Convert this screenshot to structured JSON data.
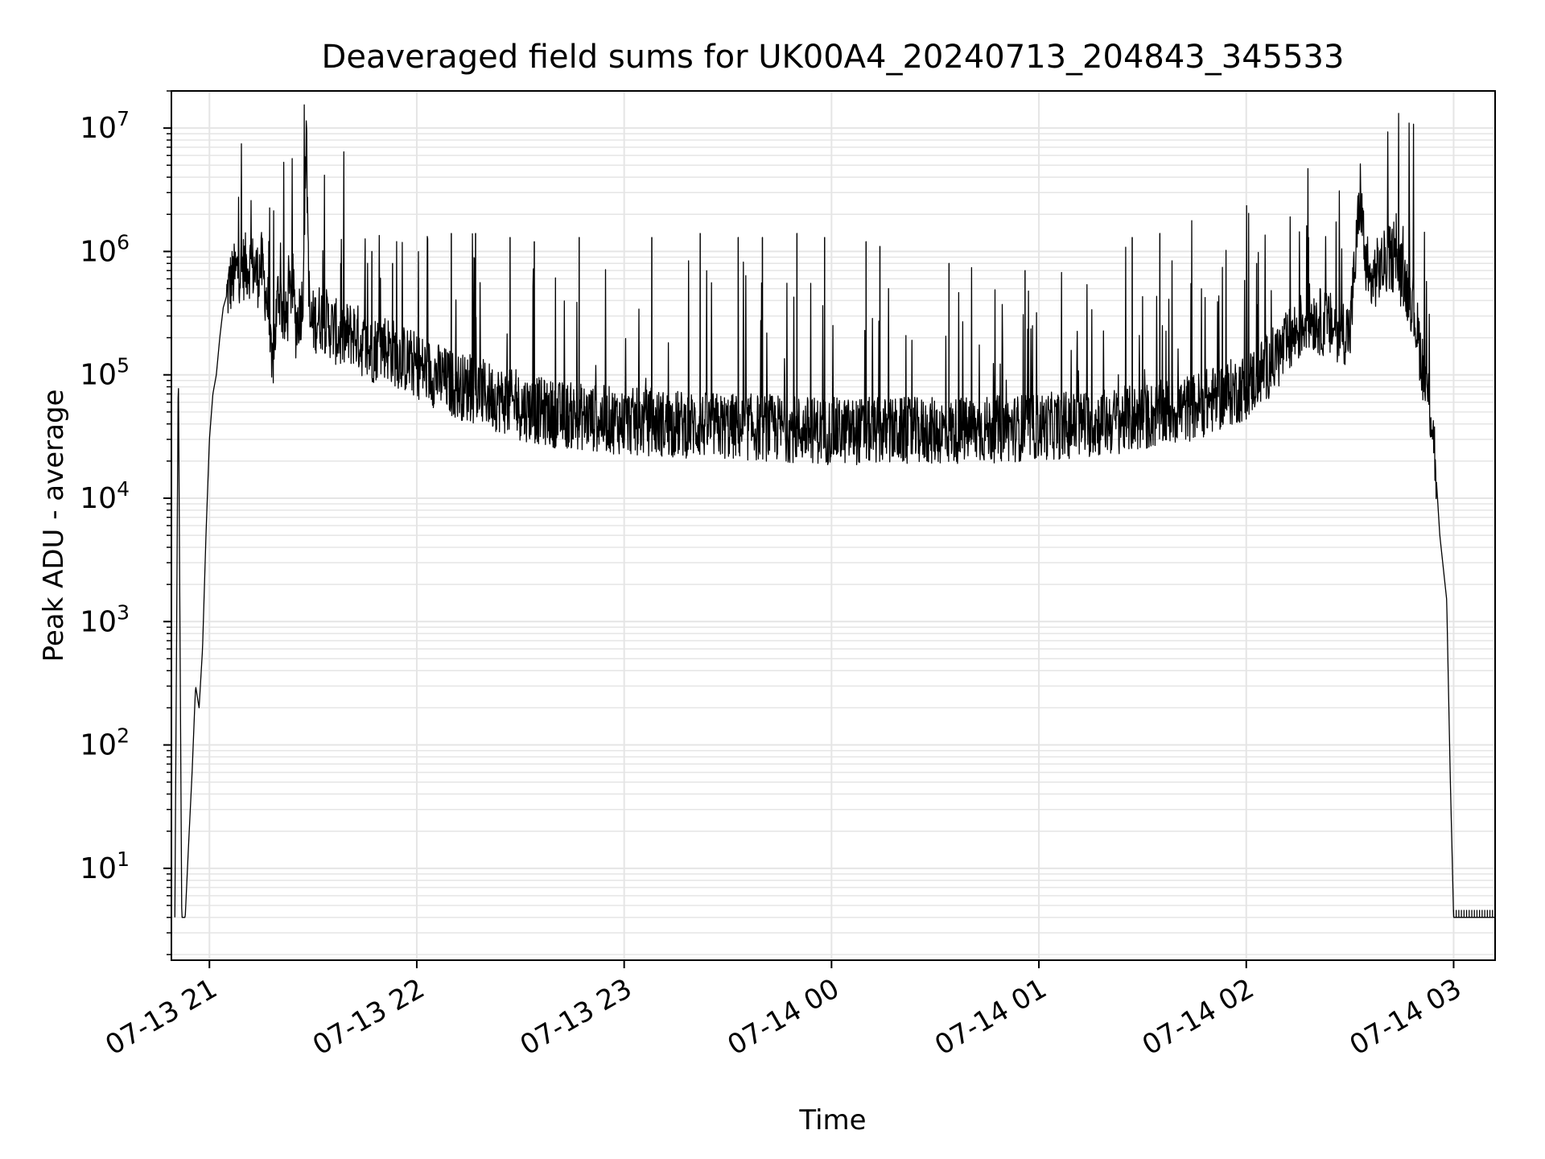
{
  "chart_data": {
    "type": "line",
    "title": "Deaveraged field sums for UK00A4_20240713_204843_345533",
    "xlabel": "Time",
    "ylabel": "Peak ADU - average",
    "yscale": "log",
    "ylim": [
      1.8,
      20000000
    ],
    "xlim": [
      "2024-07-13 20:49",
      "2024-07-14 03:12"
    ],
    "grid": true,
    "legend": "none",
    "line_color": "#000000",
    "grid_color": "#e5e5e5",
    "xticks": [
      {
        "t": "2024-07-13 21:00",
        "label": "07-13 21"
      },
      {
        "t": "2024-07-13 22:00",
        "label": "07-13 22"
      },
      {
        "t": "2024-07-13 23:00",
        "label": "07-13 23"
      },
      {
        "t": "2024-07-14 00:00",
        "label": "07-14 00"
      },
      {
        "t": "2024-07-14 01:00",
        "label": "07-14 01"
      },
      {
        "t": "2024-07-14 02:00",
        "label": "07-14 02"
      },
      {
        "t": "2024-07-14 03:00",
        "label": "07-14 03"
      }
    ],
    "yticks": [
      {
        "value": 10,
        "base": "10",
        "exp": "1"
      },
      {
        "value": 100,
        "base": "10",
        "exp": "2"
      },
      {
        "value": 1000,
        "base": "10",
        "exp": "3"
      },
      {
        "value": 10000,
        "base": "10",
        "exp": "4"
      },
      {
        "value": 100000,
        "base": "10",
        "exp": "5"
      },
      {
        "value": 1000000,
        "base": "10",
        "exp": "6"
      },
      {
        "value": 10000000,
        "base": "10",
        "exp": "7"
      }
    ],
    "series": [
      {
        "points": [
          [
            "2024-07-13 20:50",
            4
          ],
          [
            "2024-07-13 20:51",
            130000
          ],
          [
            "2024-07-13 20:52",
            4
          ],
          [
            "2024-07-13 20:53",
            4
          ],
          [
            "2024-07-13 20:54",
            16
          ],
          [
            "2024-07-13 20:55",
            60
          ],
          [
            "2024-07-13 20:56",
            300
          ],
          [
            "2024-07-13 20:57",
            200
          ],
          [
            "2024-07-13 20:58",
            600
          ],
          [
            "2024-07-13 20:59",
            5000
          ],
          [
            "2024-07-13 21:00",
            30000
          ],
          [
            "2024-07-13 21:01",
            70000
          ],
          [
            "2024-07-13 21:02",
            100000
          ],
          [
            "2024-07-13 21:03",
            200000
          ],
          [
            "2024-07-13 21:04",
            350000
          ],
          [
            "2024-07-13 21:06",
            550000
          ],
          [
            "2024-07-13 21:08",
            700000
          ],
          [
            "2024-07-13 21:10",
            750000
          ],
          [
            "2024-07-13 21:12",
            780000
          ],
          [
            "2024-07-13 21:14",
            650000
          ],
          [
            "2024-07-13 21:15",
            800000
          ],
          [
            "2024-07-13 21:17",
            350000
          ],
          [
            "2024-07-13 21:18",
            100000
          ],
          [
            "2024-07-13 21:20",
            500000
          ],
          [
            "2024-07-13 21:22",
            250000
          ],
          [
            "2024-07-13 21:24",
            600000
          ],
          [
            "2024-07-13 21:25",
            250000
          ],
          [
            "2024-07-13 21:27",
            400000
          ],
          [
            "2024-07-13 21:28",
            9000000
          ],
          [
            "2024-07-13 21:29",
            250000
          ],
          [
            "2024-07-13 21:32",
            300000
          ],
          [
            "2024-07-13 21:35",
            250000
          ],
          [
            "2024-07-13 21:38",
            200000
          ],
          [
            "2024-07-13 21:42",
            220000
          ],
          [
            "2024-07-13 21:46",
            150000
          ],
          [
            "2024-07-13 21:50",
            180000
          ],
          [
            "2024-07-13 21:55",
            140000
          ],
          [
            "2024-07-13 22:00",
            120000
          ],
          [
            "2024-07-13 22:10",
            85000
          ],
          [
            "2024-07-13 22:20",
            70000
          ],
          [
            "2024-07-13 22:30",
            55000
          ],
          [
            "2024-07-13 22:40",
            48000
          ],
          [
            "2024-07-13 22:50",
            45000
          ],
          [
            "2024-07-13 23:00",
            42000
          ],
          [
            "2024-07-13 23:15",
            40000
          ],
          [
            "2024-07-13 23:30",
            38000
          ],
          [
            "2024-07-13 23:45",
            37000
          ],
          [
            "2024-07-14 00:00",
            35000
          ],
          [
            "2024-07-14 00:15",
            35000
          ],
          [
            "2024-07-14 00:30",
            35000
          ],
          [
            "2024-07-14 00:45",
            36000
          ],
          [
            "2024-07-14 01:00",
            38000
          ],
          [
            "2024-07-14 01:15",
            40000
          ],
          [
            "2024-07-14 01:30",
            45000
          ],
          [
            "2024-07-14 01:45",
            55000
          ],
          [
            "2024-07-14 02:00",
            80000
          ],
          [
            "2024-07-14 02:10",
            150000
          ],
          [
            "2024-07-14 02:18",
            300000
          ],
          [
            "2024-07-14 02:24",
            250000
          ],
          [
            "2024-07-14 02:30",
            220000
          ],
          [
            "2024-07-14 02:33",
            3000000
          ],
          [
            "2024-07-14 02:35",
            500000
          ],
          [
            "2024-07-14 02:38",
            700000
          ],
          [
            "2024-07-14 02:42",
            900000
          ],
          [
            "2024-07-14 02:45",
            650000
          ],
          [
            "2024-07-14 02:48",
            400000
          ],
          [
            "2024-07-14 02:51",
            120000
          ],
          [
            "2024-07-14 02:54",
            40000
          ],
          [
            "2024-07-14 02:56",
            5000
          ],
          [
            "2024-07-14 02:58",
            1500
          ],
          [
            "2024-07-14 02:59",
            60
          ],
          [
            "2024-07-14 03:00",
            4
          ],
          [
            "2024-07-14 03:12",
            4
          ]
        ],
        "spikes": [
          [
            "2024-07-13 21:38",
            800000
          ],
          [
            "2024-07-13 21:47",
            1000000
          ],
          [
            "2024-07-13 21:53",
            800000
          ],
          [
            "2024-07-13 22:10",
            1400000
          ],
          [
            "2024-07-13 22:17",
            1400000
          ],
          [
            "2024-07-13 22:27",
            1300000
          ],
          [
            "2024-07-13 22:34",
            1200000
          ],
          [
            "2024-07-13 22:47",
            1300000
          ],
          [
            "2024-07-13 23:08",
            1300000
          ],
          [
            "2024-07-13 23:22",
            1400000
          ],
          [
            "2024-07-13 23:33",
            1300000
          ],
          [
            "2024-07-13 23:40",
            1300000
          ],
          [
            "2024-07-13 23:50",
            1400000
          ],
          [
            "2024-07-13 23:58",
            1300000
          ],
          [
            "2024-07-14 00:10",
            1200000
          ],
          [
            "2024-07-14 00:14",
            1100000
          ],
          [
            "2024-07-14 00:34",
            800000
          ],
          [
            "2024-07-14 00:56",
            700000
          ],
          [
            "2024-07-14 01:27",
            1300000
          ],
          [
            "2024-07-14 01:35",
            1400000
          ],
          [
            "2024-07-14 02:03",
            800000
          ],
          [
            "2024-07-14 02:18",
            1300000
          ]
        ]
      }
    ]
  }
}
